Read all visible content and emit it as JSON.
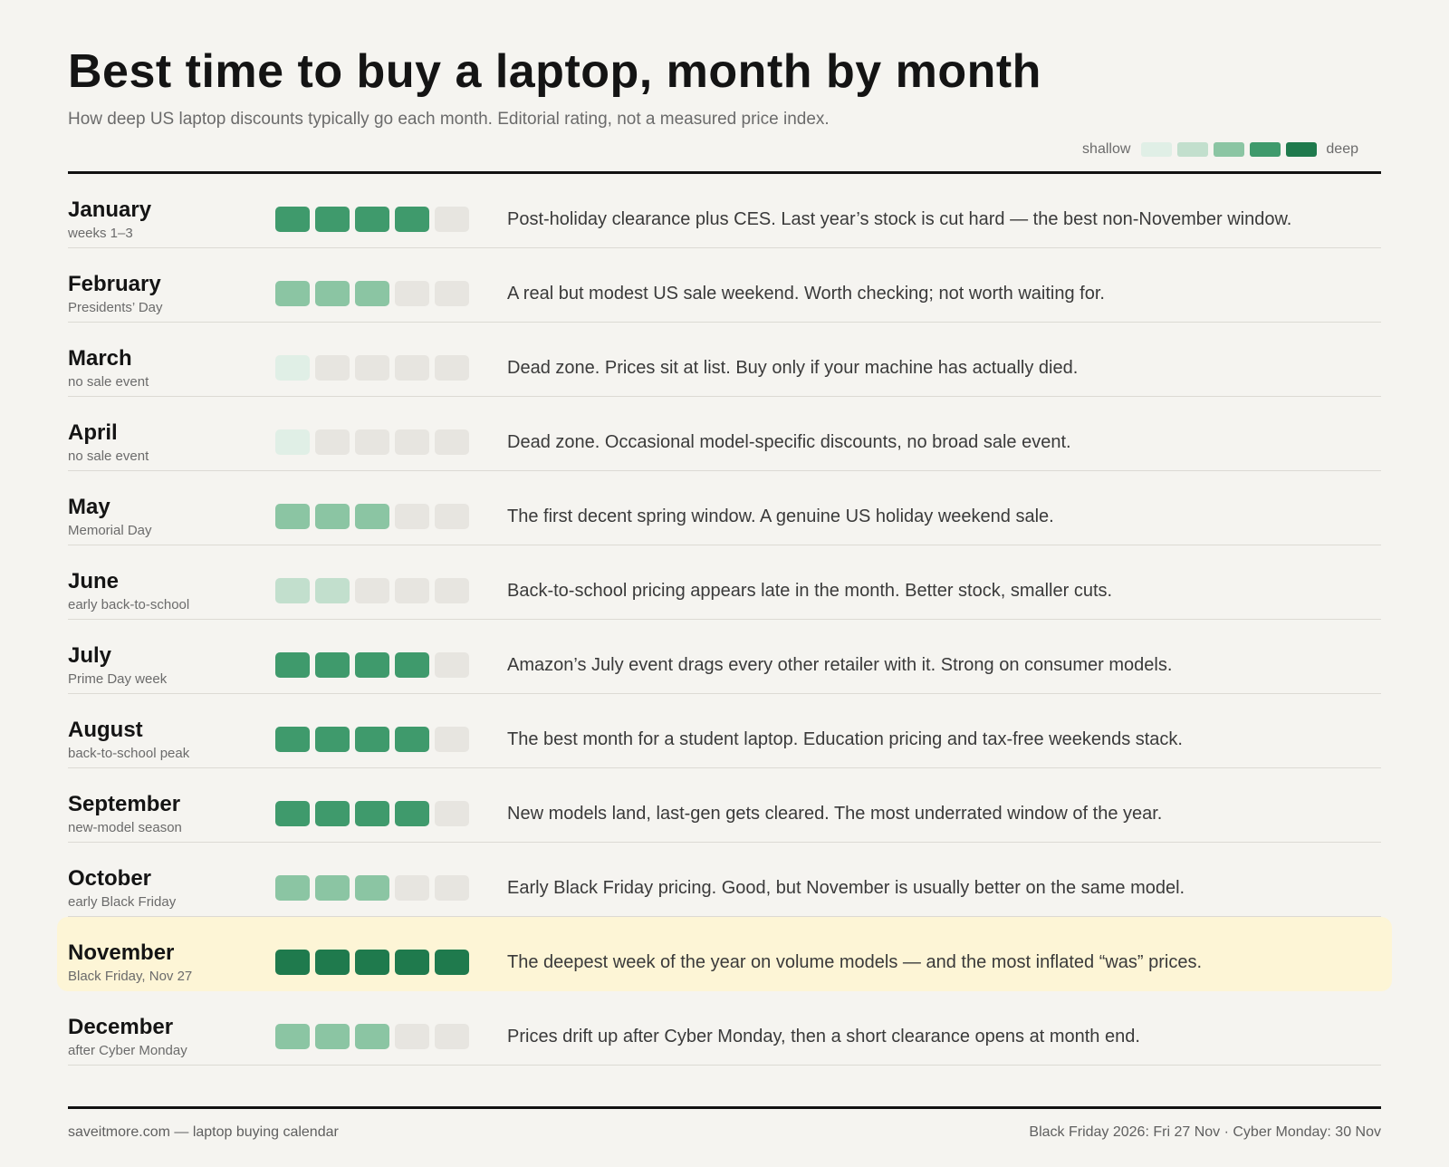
{
  "header": {
    "title": "Best time to buy a laptop, month by month",
    "subtitle": "How deep US laptop discounts typically go each month. Editorial rating, not a measured price index."
  },
  "legend": {
    "left_label": "shallow",
    "right_label": "deep",
    "colors": [
      "#e0efe6",
      "#c2dfcd",
      "#8bc5a3",
      "#3f9a6c",
      "#1f7a4d"
    ]
  },
  "colors": {
    "empty_cell": "#e7e5e0",
    "highlight_row": "#fdf5d6"
  },
  "chart_data": {
    "type": "table",
    "scale_max": 5,
    "rows": [
      {
        "month": "January",
        "note": "weeks 1–3",
        "rating": 4,
        "description": "Post-holiday clearance plus CES. Last year’s stock is cut hard — the best non-November window."
      },
      {
        "month": "February",
        "note": "Presidents’ Day",
        "rating": 3,
        "description": "A real but modest US sale weekend. Worth checking; not worth waiting for."
      },
      {
        "month": "March",
        "note": "no sale event",
        "rating": 1,
        "description": "Dead zone. Prices sit at list. Buy only if your machine has actually died."
      },
      {
        "month": "April",
        "note": "no sale event",
        "rating": 1,
        "description": "Dead zone. Occasional model-specific discounts, no broad sale event."
      },
      {
        "month": "May",
        "note": "Memorial Day",
        "rating": 3,
        "description": "The first decent spring window. A genuine US holiday weekend sale."
      },
      {
        "month": "June",
        "note": "early back-to-school",
        "rating": 2,
        "description": "Back-to-school pricing appears late in the month. Better stock, smaller cuts."
      },
      {
        "month": "July",
        "note": "Prime Day week",
        "rating": 4,
        "description": "Amazon’s July event drags every other retailer with it. Strong on consumer models."
      },
      {
        "month": "August",
        "note": "back-to-school peak",
        "rating": 4,
        "description": "The best month for a student laptop. Education pricing and tax-free weekends stack."
      },
      {
        "month": "September",
        "note": "new-model season",
        "rating": 4,
        "description": "New models land, last-gen gets cleared. The most underrated window of the year."
      },
      {
        "month": "October",
        "note": "early Black Friday",
        "rating": 3,
        "description": "Early Black Friday pricing. Good, but November is usually better on the same model."
      },
      {
        "month": "November",
        "note": "Black Friday, Nov 27",
        "rating": 5,
        "highlight": true,
        "description": "The deepest week of the year on volume models — and the most inflated “was” prices."
      },
      {
        "month": "December",
        "note": "after Cyber Monday",
        "rating": 3,
        "description": "Prices drift up after Cyber Monday, then a short clearance opens at month end."
      }
    ]
  },
  "footer": {
    "source": "saveitmore.com — laptop buying calendar",
    "dates": "Black Friday 2026: Fri 27 Nov · Cyber Monday: 30 Nov"
  }
}
